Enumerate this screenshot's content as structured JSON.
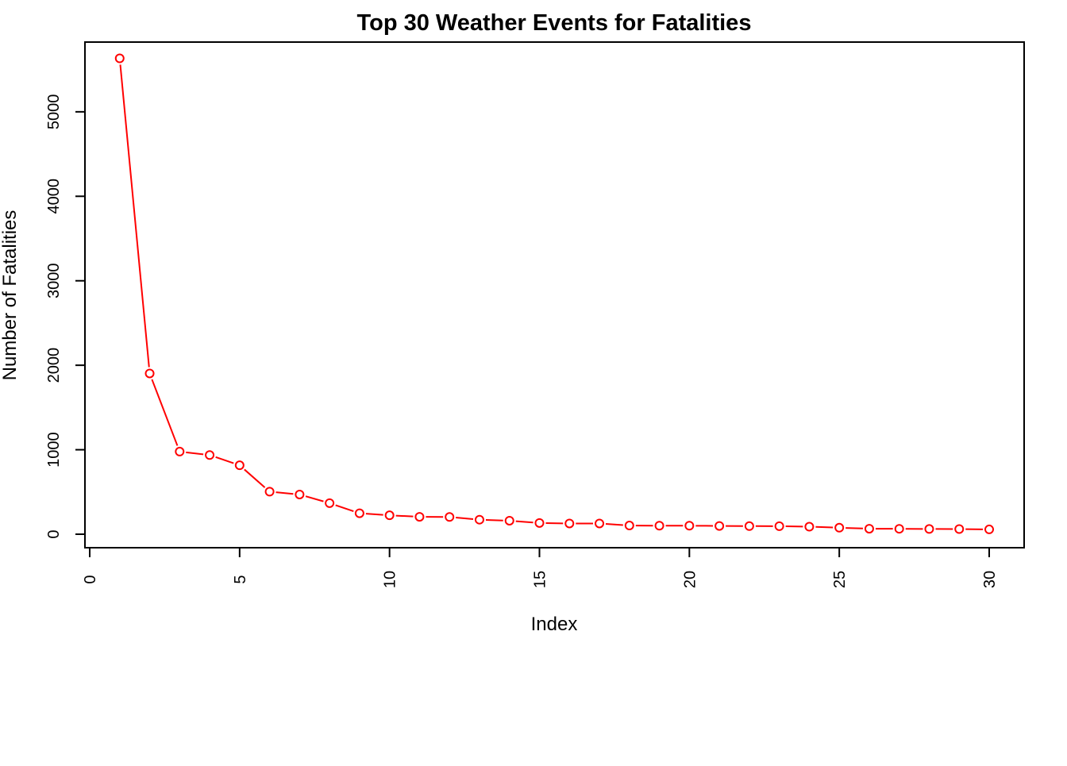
{
  "chart_data": {
    "type": "line",
    "title": "Top 30 Weather Events for Fatalities",
    "xlabel": "Index",
    "ylabel": "Number of Fatalities",
    "xlim": [
      0,
      30
    ],
    "ylim": [
      0,
      5600
    ],
    "x_ticks": [
      0,
      5,
      10,
      15,
      20,
      25,
      30
    ],
    "y_ticks": [
      0,
      1000,
      2000,
      3000,
      4000,
      5000
    ],
    "grid": false,
    "legend": "none",
    "series": [
      {
        "color": "#ff0000",
        "marker": "open-circle",
        "x": [
          1,
          2,
          3,
          4,
          5,
          6,
          7,
          8,
          9,
          10,
          11,
          12,
          13,
          14,
          15,
          16,
          17,
          18,
          19,
          20,
          21,
          22,
          23,
          24,
          25,
          26,
          27,
          28,
          29,
          30
        ],
        "values": [
          5633,
          1903,
          978,
          937,
          816,
          504,
          470,
          368,
          248,
          224,
          206,
          204,
          172,
          160,
          133,
          127,
          127,
          103,
          101,
          101,
          98,
          96,
          95,
          89,
          77,
          65,
          64,
          62,
          61,
          57
        ]
      }
    ]
  }
}
